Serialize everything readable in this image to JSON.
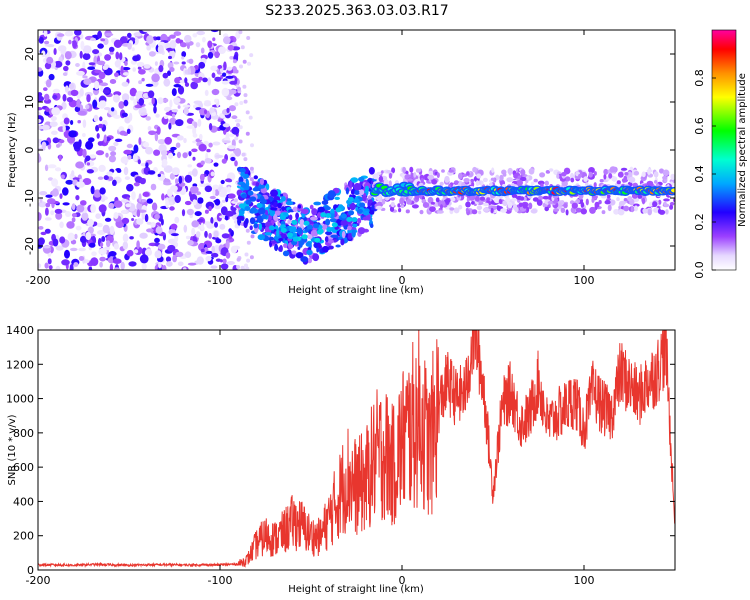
{
  "title": "S233.2025.363.03.03.R17",
  "colors": {
    "line": "#e8362e",
    "axis": "#000000"
  },
  "chart_data": [
    {
      "type": "heatmap",
      "name": "spectrogram",
      "xlabel": "Height of straight line (km)",
      "ylabel": "Frequency (Hz)",
      "xlim": [
        -200,
        150
      ],
      "ylim": [
        -25,
        25
      ],
      "xticks": [
        "-200",
        "-100",
        "0",
        "100"
      ],
      "xtick_values": [
        -200,
        -100,
        0,
        100
      ],
      "yticks": [
        "20",
        "10",
        "0",
        "-10",
        "-20"
      ],
      "ytick_values": [
        20,
        10,
        0,
        -10,
        -20
      ],
      "colorbar": {
        "label": "Normalized spectral amplitude",
        "range": [
          0,
          1
        ],
        "ticks": [
          "0.0",
          "0.2",
          "0.4",
          "0.6",
          "0.8"
        ],
        "tick_values": [
          0.0,
          0.2,
          0.4,
          0.6,
          0.8
        ]
      },
      "features": [
        {
          "region": "noise",
          "x": [
            -200,
            -90
          ],
          "y": [
            -25,
            25
          ],
          "amplitude": [
            0.05,
            0.22
          ]
        },
        {
          "region": "descending scatter",
          "x": [
            -90,
            -15
          ],
          "freq_center": [
            -9,
            -18,
            -12
          ],
          "amplitude": [
            0.2,
            0.4
          ]
        },
        {
          "region": "carrier line",
          "x": [
            -15,
            150
          ],
          "freq": -8.5,
          "amplitude": [
            0.4,
            0.95
          ]
        }
      ]
    },
    {
      "type": "line",
      "name": "snr",
      "xlabel": "Height of straight line (km)",
      "ylabel": "SNR (10 * v/v)",
      "xlim": [
        -200,
        150
      ],
      "ylim": [
        0,
        1400
      ],
      "xticks": [
        "-200",
        "-100",
        "0",
        "100"
      ],
      "xtick_values": [
        -200,
        -100,
        0,
        100
      ],
      "yticks": [
        "0",
        "200",
        "400",
        "600",
        "800",
        "1000",
        "1200",
        "1400"
      ],
      "ytick_values": [
        0,
        200,
        400,
        600,
        800,
        1000,
        1200,
        1400
      ],
      "series": [
        {
          "name": "SNR",
          "x": [
            -200,
            -190,
            -180,
            -170,
            -160,
            -150,
            -140,
            -130,
            -120,
            -110,
            -100,
            -90,
            -85,
            -80,
            -75,
            -70,
            -65,
            -60,
            -55,
            -50,
            -45,
            -40,
            -35,
            -30,
            -25,
            -20,
            -15,
            -10,
            -5,
            0,
            5,
            10,
            15,
            20,
            25,
            30,
            35,
            40,
            45,
            50,
            55,
            60,
            65,
            70,
            75,
            80,
            85,
            90,
            95,
            100,
            105,
            110,
            115,
            120,
            125,
            130,
            135,
            140,
            145,
            150
          ],
          "y": [
            30,
            30,
            28,
            32,
            30,
            28,
            30,
            31,
            29,
            30,
            30,
            35,
            60,
            150,
            200,
            180,
            220,
            280,
            260,
            200,
            190,
            300,
            420,
            550,
            480,
            520,
            650,
            700,
            600,
            750,
            820,
            900,
            700,
            950,
            1100,
            1000,
            1050,
            1400,
            1050,
            450,
            950,
            1050,
            850,
            900,
            1100,
            850,
            900,
            950,
            1000,
            820,
            1050,
            950,
            900,
            1150,
            1080,
            1000,
            1100,
            1150,
            1300,
            250
          ]
        }
      ]
    }
  ]
}
